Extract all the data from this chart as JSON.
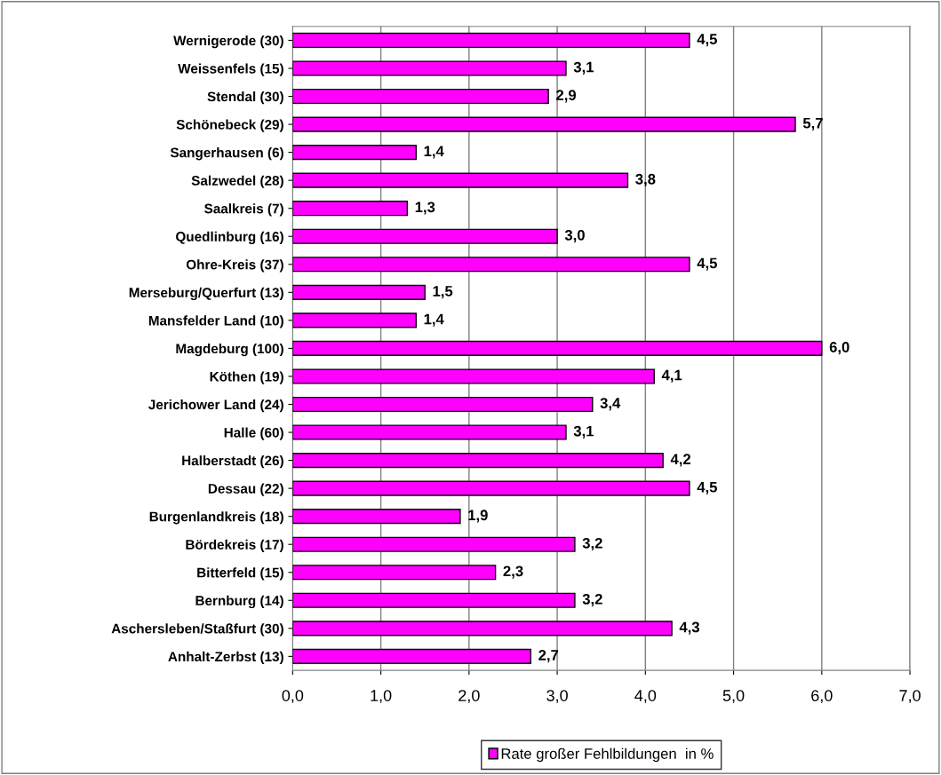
{
  "chart_data": {
    "type": "bar",
    "orientation": "horizontal",
    "categories": [
      "Wernigerode (30)",
      "Weissenfels (15)",
      "Stendal (30)",
      "Schönebeck (29)",
      "Sangerhausen (6)",
      "Salzwedel (28)",
      "Saalkreis (7)",
      "Quedlinburg (16)",
      "Ohre-Kreis (37)",
      "Merseburg/Querfurt (13)",
      "Mansfelder Land (10)",
      "Magdeburg (100)",
      "Köthen (19)",
      "Jerichower Land (24)",
      "Halle (60)",
      "Halberstadt (26)",
      "Dessau (22)",
      "Burgenlandkreis (18)",
      "Bördekreis (17)",
      "Bitterfeld (15)",
      "Bernburg (14)",
      "Aschersleben/Staßfurt (30)",
      "Anhalt-Zerbst (13)"
    ],
    "series": [
      {
        "name": "Rate großer Fehlbildungen  in %",
        "color": "#ff00ff",
        "values": [
          4.5,
          3.1,
          2.9,
          5.7,
          1.4,
          3.8,
          1.3,
          3.0,
          4.5,
          1.5,
          1.4,
          6.0,
          4.1,
          3.4,
          3.1,
          4.2,
          4.5,
          1.9,
          3.2,
          2.3,
          3.2,
          4.3,
          2.7
        ],
        "value_labels": [
          "4,5",
          "3,1",
          "2,9",
          "5,7",
          "1,4",
          "3,8",
          "1,3",
          "3,0",
          "4,5",
          "1,5",
          "1,4",
          "6,0",
          "4,1",
          "3,4",
          "3,1",
          "4,2",
          "4,5",
          "1,9",
          "3,2",
          "2,3",
          "3,2",
          "4,3",
          "2,7"
        ]
      }
    ],
    "xlim": [
      0,
      7
    ],
    "xticks": [
      {
        "value": 0,
        "label": "0,0"
      },
      {
        "value": 1,
        "label": "1,0"
      },
      {
        "value": 2,
        "label": "2,0"
      },
      {
        "value": 3,
        "label": "3,0"
      },
      {
        "value": 4,
        "label": "4,0"
      },
      {
        "value": 5,
        "label": "5,0"
      },
      {
        "value": 6,
        "label": "6,0"
      },
      {
        "value": 7,
        "label": "7,0"
      }
    ],
    "grid": "x",
    "legend": "bottom"
  }
}
